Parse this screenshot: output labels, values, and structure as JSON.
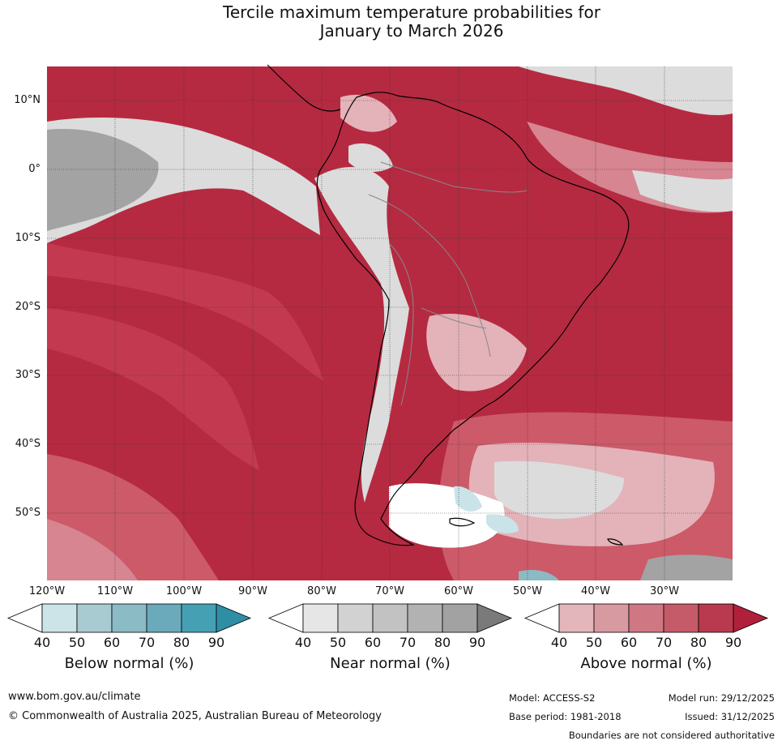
{
  "title": {
    "line1": "Tercile maximum temperature probabilities for",
    "line2": "January to March 2026"
  },
  "map": {
    "lat_labels": [
      "10°N",
      "0°",
      "10°S",
      "20°S",
      "30°S",
      "40°S",
      "50°S"
    ],
    "lon_labels": [
      "120°W",
      "110°W",
      "100°W",
      "90°W",
      "80°W",
      "70°W",
      "60°W",
      "50°W",
      "40°W",
      "30°W"
    ],
    "colors": {
      "ocean_above": "#b52a41",
      "above_80": "#c33a50",
      "above_70": "#cc5a68",
      "above_60": "#d68591",
      "above_50": "#e3b3b9",
      "near_70": "#a3a3a3",
      "near_60": "#c3c3c3",
      "near_50": "#dcdcdc",
      "below_40": "#c9e3e9",
      "below_60": "#8cbac4",
      "coast": "#000000",
      "borders": "#888888"
    }
  },
  "legends": [
    {
      "name": "below",
      "title": "Below normal (%)",
      "ticks": [
        "40",
        "50",
        "60",
        "70",
        "80",
        "90"
      ],
      "colors": [
        "#cce3e8",
        "#a8cbd1",
        "#8bbbc4",
        "#6aaabb",
        "#46a0b4",
        "#2e8ea4"
      ]
    },
    {
      "name": "near",
      "title": "Near normal (%)",
      "ticks": [
        "40",
        "50",
        "60",
        "70",
        "80",
        "90"
      ],
      "colors": [
        "#e6e6e6",
        "#d2d2d2",
        "#c2c2c2",
        "#b2b2b2",
        "#a2a2a2",
        "#7a7a7a"
      ]
    },
    {
      "name": "above",
      "title": "Above normal (%)",
      "ticks": [
        "40",
        "50",
        "60",
        "70",
        "80",
        "90"
      ],
      "colors": [
        "#e3b6bb",
        "#d89aa1",
        "#cf7883",
        "#c55a68",
        "#b93a4e",
        "#b0203a"
      ]
    }
  ],
  "footer": {
    "website": "www.bom.gov.au/climate",
    "copyright": "© Commonwealth of Australia 2025, Australian Bureau of Meteorology",
    "model": "Model: ACCESS-S2",
    "base_period": "Base period: 1981-2018",
    "model_run": "Model run: 29/12/2025",
    "issued": "Issued: 31/12/2025",
    "disclaimer": "Boundaries are not considered authoritative"
  }
}
